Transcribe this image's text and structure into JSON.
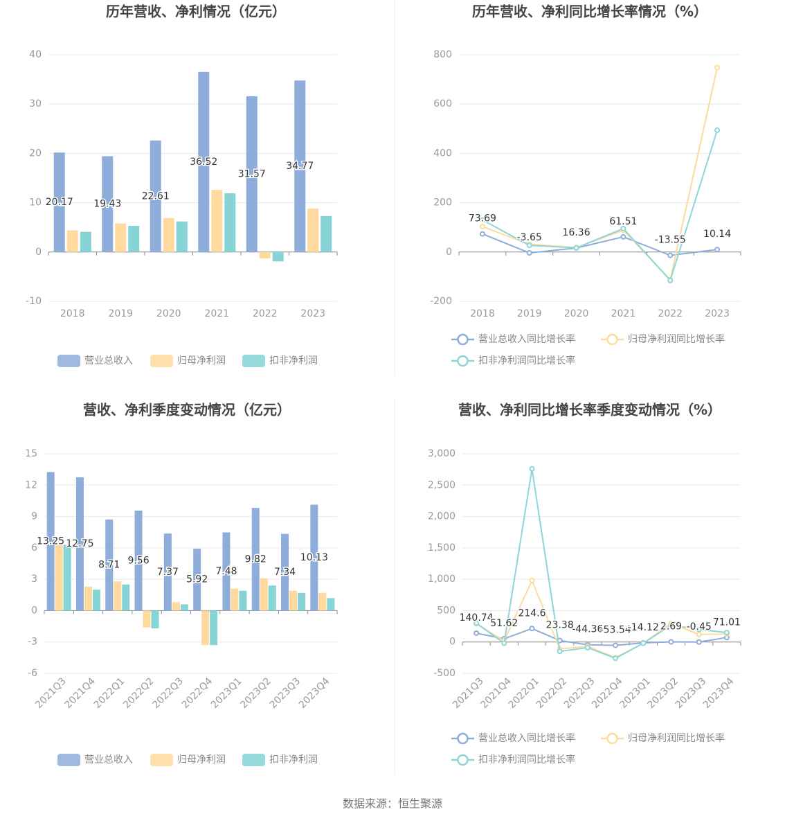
{
  "source": "数据来源：恒生聚源",
  "chart_data": [
    {
      "type": "bar",
      "title": "历年营收、净利情况（亿元）",
      "categories": [
        "2018",
        "2019",
        "2020",
        "2021",
        "2022",
        "2023"
      ],
      "series": [
        {
          "name": "营业总收入",
          "color": "#8eaddb",
          "values": [
            20.17,
            19.43,
            22.61,
            36.52,
            31.57,
            34.77
          ],
          "show_labels": true
        },
        {
          "name": "归母净利润",
          "color": "#ffd99e",
          "values": [
            4.4,
            5.8,
            6.9,
            12.6,
            -1.3,
            8.8
          ]
        },
        {
          "name": "扣非净利润",
          "color": "#86d4d6",
          "values": [
            4.1,
            5.3,
            6.2,
            11.9,
            -1.9,
            7.3
          ]
        }
      ],
      "ylim": [
        -10,
        40
      ],
      "yticks": [
        -10,
        0,
        10,
        20,
        30,
        40
      ],
      "grid": true,
      "legend": "bottom"
    },
    {
      "type": "line",
      "title": "历年营收、净利同比增长率情况（%）",
      "categories": [
        "2018",
        "2019",
        "2020",
        "2021",
        "2022",
        "2023"
      ],
      "series": [
        {
          "name": "营业总收入同比增长率",
          "color": "#8eaddb",
          "values": [
            73.69,
            -3.65,
            16.36,
            61.51,
            -13.55,
            10.14
          ],
          "show_labels": true
        },
        {
          "name": "归母净利润同比增长率",
          "color": "#fddb9e",
          "values": [
            103,
            32,
            18,
            88,
            -112,
            748
          ]
        },
        {
          "name": "扣非净利润同比增长率",
          "color": "#8dd6d7",
          "values": [
            130,
            27,
            17,
            95,
            -115,
            494
          ]
        }
      ],
      "ylim": [
        -200,
        800
      ],
      "yticks": [
        -200,
        0,
        200,
        400,
        600,
        800
      ],
      "grid": true,
      "legend": "bottom"
    },
    {
      "type": "bar",
      "title": "营收、净利季度变动情况（亿元）",
      "categories": [
        "2021Q3",
        "2021Q4",
        "2022Q1",
        "2022Q2",
        "2022Q3",
        "2022Q4",
        "2023Q1",
        "2023Q2",
        "2023Q3",
        "2023Q4"
      ],
      "series": [
        {
          "name": "营业总收入",
          "color": "#8eaddb",
          "values": [
            13.25,
            12.75,
            8.71,
            9.56,
            7.37,
            5.92,
            7.48,
            9.82,
            7.34,
            10.13
          ],
          "show_labels": true
        },
        {
          "name": "归母净利润",
          "color": "#ffd99e",
          "values": [
            6.3,
            2.3,
            2.8,
            -1.6,
            0.8,
            -3.3,
            2.1,
            3.1,
            1.9,
            1.7
          ]
        },
        {
          "name": "扣非净利润",
          "color": "#86d4d6",
          "values": [
            6.3,
            2.0,
            2.5,
            -1.7,
            0.6,
            -3.3,
            1.9,
            2.4,
            1.7,
            1.2
          ]
        }
      ],
      "ylim": [
        -6,
        15
      ],
      "yticks": [
        -6,
        -3,
        0,
        3,
        6,
        9,
        12,
        15
      ],
      "grid": true,
      "legend": "bottom"
    },
    {
      "type": "line",
      "title": "营收、净利同比增长率季度变动情况（%）",
      "categories": [
        "2021Q3",
        "2021Q4",
        "2022Q1",
        "2022Q2",
        "2022Q3",
        "2022Q4",
        "2023Q1",
        "2023Q2",
        "2023Q3",
        "2023Q4"
      ],
      "series": [
        {
          "name": "营业总收入同比增长率",
          "color": "#8eaddb",
          "values": [
            140.74,
            51.62,
            214.6,
            23.38,
            -44.36,
            -53.54,
            -14.12,
            2.69,
            -0.45,
            71.01
          ],
          "show_labels": true
        },
        {
          "name": "归母净利润同比增长率",
          "color": "#fddb9e",
          "values": [
            290,
            20,
            980,
            -110,
            -70,
            -250,
            -20,
            300,
            120,
            130
          ]
        },
        {
          "name": "扣非净利润同比增长率",
          "color": "#8dd6d7",
          "values": [
            300,
            -20,
            2760,
            -150,
            -90,
            -260,
            -20,
            270,
            200,
            150
          ]
        }
      ],
      "ylim": [
        -500,
        3000
      ],
      "yticks": [
        -500,
        0,
        500,
        {
          "value": 1000,
          "label": "1,000"
        },
        {
          "value": 1500,
          "label": "1,500"
        },
        {
          "value": 2000,
          "label": "2,000"
        },
        {
          "value": 2500,
          "label": "2,500"
        },
        {
          "value": 3000,
          "label": "3,000"
        }
      ],
      "grid": true,
      "legend": "bottom"
    }
  ]
}
